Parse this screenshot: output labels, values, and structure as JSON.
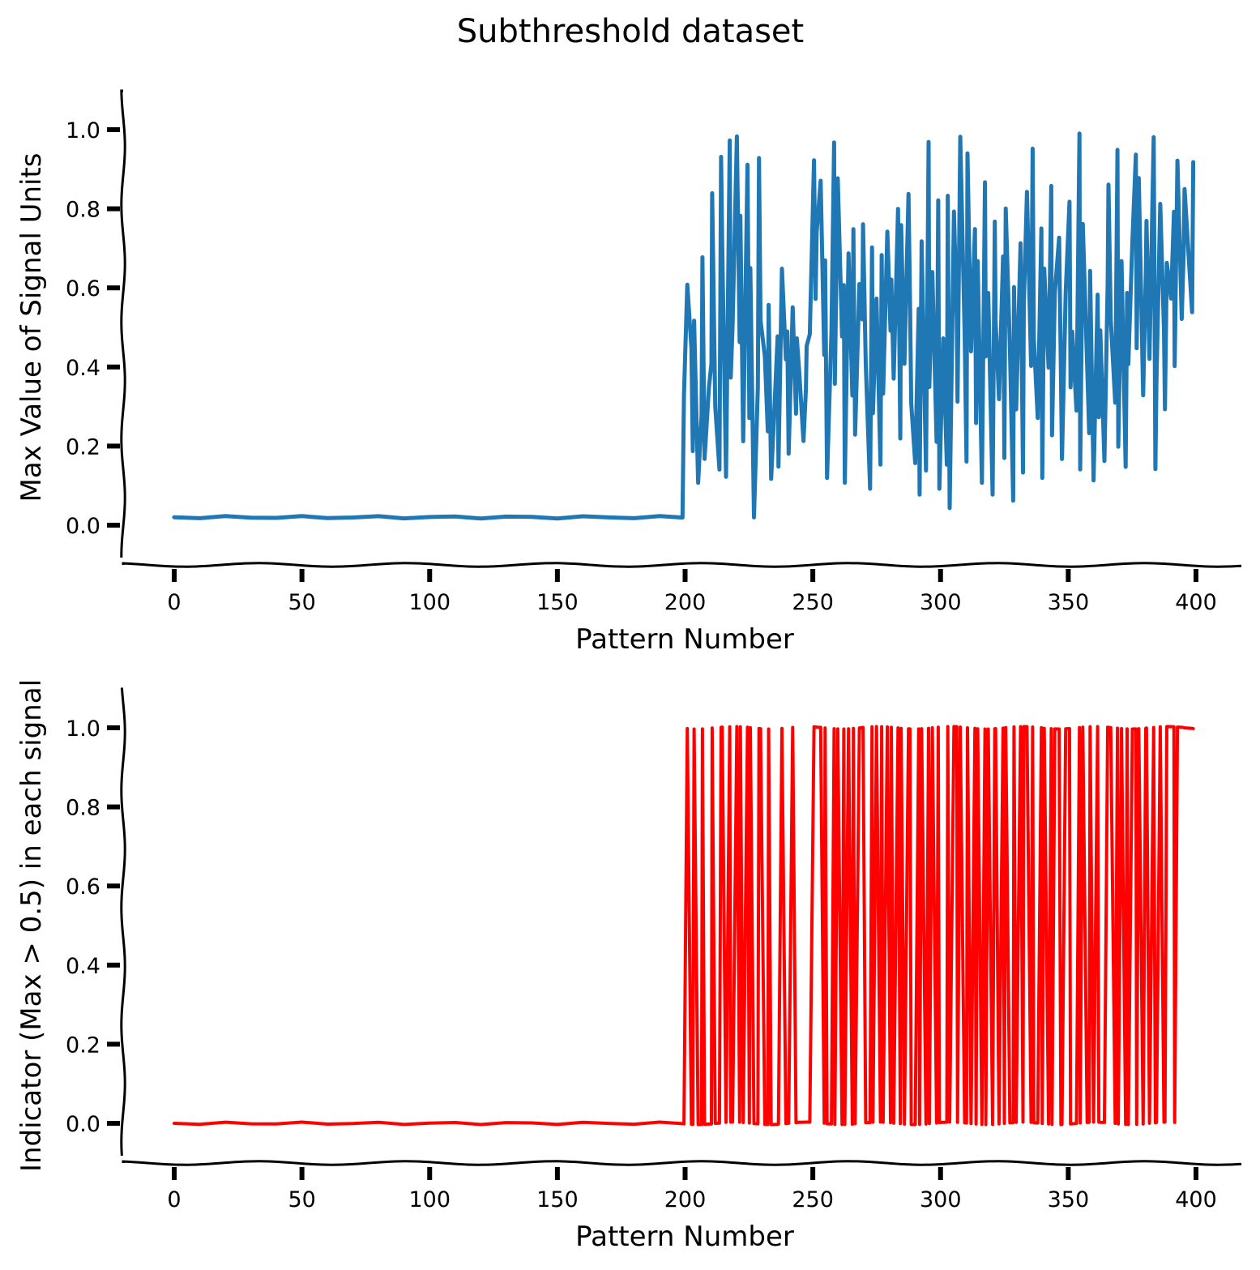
{
  "figure": {
    "title": "Subthreshold dataset"
  },
  "chart_data": [
    {
      "type": "line",
      "title": "",
      "xlabel": "Pattern Number",
      "ylabel": "Max Value of Signal Units",
      "xlim": [
        -20,
        420
      ],
      "ylim": [
        -0.1,
        1.1
      ],
      "xticks": [
        0,
        50,
        100,
        150,
        200,
        250,
        300,
        350,
        400
      ],
      "yticks": [
        0.0,
        0.2,
        0.4,
        0.6,
        0.8,
        1.0
      ],
      "xtick_labels": [
        "0",
        "50",
        "100",
        "150",
        "200",
        "250",
        "300",
        "350",
        "400"
      ],
      "ytick_labels": [
        "0.0",
        "0.2",
        "0.4",
        "0.6",
        "0.8",
        "1.0"
      ],
      "grid": false,
      "style": "xkcd",
      "series": [
        {
          "color": "#1f77b4",
          "x": [
            0,
            10,
            20,
            30,
            40,
            50,
            60,
            70,
            80,
            90,
            100,
            110,
            120,
            130,
            140,
            150,
            160,
            170,
            180,
            190,
            199,
            200,
            201,
            202,
            203,
            204,
            205,
            206,
            207,
            208,
            209,
            210,
            211,
            212,
            213,
            214,
            215,
            216,
            217,
            218,
            219,
            220,
            221,
            222,
            223,
            224,
            225,
            226,
            227,
            228,
            229,
            230,
            231,
            232,
            233,
            234,
            235,
            236,
            237,
            238,
            239,
            240,
            241,
            242,
            243,
            244,
            245,
            246,
            247,
            248,
            249,
            250,
            251,
            252,
            253,
            254,
            255,
            256,
            257,
            258,
            259,
            260,
            261,
            262,
            263,
            264,
            265,
            266,
            267,
            268,
            269,
            270,
            271,
            272,
            273,
            274,
            275,
            276,
            277,
            278,
            279,
            280,
            281,
            282,
            283,
            284,
            285,
            286,
            287,
            288,
            289,
            290,
            291,
            292,
            293,
            294,
            295,
            296,
            297,
            298,
            299,
            300,
            301,
            302,
            303,
            304,
            305,
            306,
            307,
            308,
            309,
            310,
            311,
            312,
            313,
            314,
            315,
            316,
            317,
            318,
            319,
            320,
            321,
            322,
            323,
            324,
            325,
            326,
            327,
            328,
            329,
            330,
            331,
            332,
            333,
            334,
            335,
            336,
            337,
            338,
            339,
            340,
            341,
            342,
            343,
            344,
            345,
            346,
            347,
            348,
            349,
            350,
            351,
            352,
            353,
            354,
            355,
            356,
            357,
            358,
            359,
            360,
            361,
            362,
            363,
            364,
            365,
            366,
            367,
            368,
            369,
            370,
            371,
            372,
            373,
            374,
            375,
            376,
            377,
            378,
            379,
            380,
            381,
            382,
            383,
            384,
            385,
            386,
            387,
            388,
            389,
            390,
            391,
            392,
            393,
            394,
            395,
            396,
            397,
            398,
            399
          ],
          "values": [
            0.02,
            0.02,
            0.02,
            0.02,
            0.02,
            0.02,
            0.02,
            0.02,
            0.02,
            0.02,
            0.02,
            0.02,
            0.02,
            0.02,
            0.02,
            0.02,
            0.02,
            0.02,
            0.02,
            0.02,
            0.02,
            0.33,
            0.61,
            0.45,
            0.19,
            0.52,
            0.11,
            0.28,
            0.68,
            0.17,
            0.35,
            0.41,
            0.84,
            0.3,
            0.14,
            0.93,
            0.71,
            0.12,
            0.97,
            0.37,
            0.5,
            0.98,
            0.46,
            0.78,
            0.21,
            0.91,
            0.27,
            0.65,
            0.02,
            0.35,
            0.93,
            0.52,
            0.43,
            0.24,
            0.56,
            0.12,
            0.36,
            0.48,
            0.15,
            0.65,
            0.42,
            0.49,
            0.18,
            0.55,
            0.28,
            0.47,
            0.39,
            0.21,
            0.34,
            0.45,
            0.48,
            0.92,
            0.57,
            0.74,
            0.87,
            0.43,
            0.67,
            0.12,
            0.49,
            0.97,
            0.36,
            0.88,
            0.48,
            0.61,
            0.11,
            0.69,
            0.33,
            0.75,
            0.23,
            0.61,
            0.52,
            0.76,
            0.41,
            0.09,
            0.7,
            0.28,
            0.57,
            0.15,
            0.68,
            0.33,
            0.74,
            0.49,
            0.62,
            0.37,
            0.8,
            0.22,
            0.76,
            0.41,
            0.84,
            0.58,
            0.31,
            0.16,
            0.55,
            0.08,
            0.72,
            0.14,
            0.97,
            0.35,
            0.64,
            0.21,
            0.82,
            0.09,
            0.47,
            0.15,
            0.83,
            0.04,
            0.79,
            0.52,
            0.31,
            0.98,
            0.48,
            0.16,
            0.94,
            0.44,
            0.75,
            0.26,
            0.67,
            0.11,
            0.87,
            0.43,
            0.59,
            0.08,
            0.77,
            0.52,
            0.32,
            0.68,
            0.17,
            0.8,
            0.45,
            0.06,
            0.6,
            0.29,
            0.71,
            0.13,
            0.55,
            0.84,
            0.4,
            0.95,
            0.47,
            0.27,
            0.75,
            0.12,
            0.65,
            0.4,
            0.86,
            0.23,
            0.59,
            0.73,
            0.39,
            0.17,
            0.59,
            0.82,
            0.35,
            0.49,
            0.29,
            0.99,
            0.14,
            0.76,
            0.4,
            0.23,
            0.64,
            0.11,
            0.58,
            0.27,
            0.49,
            0.16,
            0.61,
            0.86,
            0.52,
            0.31,
            0.95,
            0.2,
            0.67,
            0.15,
            0.59,
            0.41,
            0.72,
            0.94,
            0.45,
            0.88,
            0.33,
            0.63,
            0.77,
            0.42,
            0.98,
            0.14,
            0.36,
            0.81,
            0.49,
            0.29,
            0.66,
            0.57,
            0.79,
            0.4,
            0.92,
            0.52,
            0.69,
            0.85,
            0.7,
            0.54,
            0.92
          ]
        }
      ]
    },
    {
      "type": "line",
      "title": "",
      "xlabel": "Pattern Number",
      "ylabel": "Indicator (Max > 0.5) in each signal",
      "xlim": [
        -20,
        420
      ],
      "ylim": [
        -0.1,
        1.1
      ],
      "xticks": [
        0,
        50,
        100,
        150,
        200,
        250,
        300,
        350,
        400
      ],
      "yticks": [
        0.0,
        0.2,
        0.4,
        0.6,
        0.8,
        1.0
      ],
      "xtick_labels": [
        "0",
        "50",
        "100",
        "150",
        "200",
        "250",
        "300",
        "350",
        "400"
      ],
      "ytick_labels": [
        "0.0",
        "0.2",
        "0.4",
        "0.6",
        "0.8",
        "1.0"
      ],
      "grid": false,
      "style": "xkcd",
      "series": [
        {
          "color": "#ff0000",
          "threshold": 0.5,
          "source": 0
        }
      ]
    }
  ]
}
